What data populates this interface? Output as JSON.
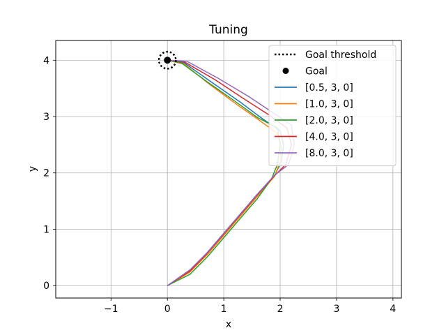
{
  "chart_data": {
    "type": "line",
    "title": "Tuning",
    "xlabel": "x",
    "ylabel": "y",
    "xlim": [
      -1.98,
      4.15
    ],
    "ylim": [
      -0.22,
      4.35
    ],
    "xticks": [
      -1,
      0,
      1,
      2,
      3,
      4
    ],
    "yticks": [
      0,
      1,
      2,
      3,
      4
    ],
    "grid": true,
    "legend_position": "top-right",
    "goal": {
      "x": 0,
      "y": 4,
      "threshold_radius": 0.15,
      "threshold_label": "Goal threshold",
      "label": "Goal"
    },
    "series": [
      {
        "name": "[0.5, 3, 0]",
        "color": "#1f77b4",
        "points": [
          [
            0,
            0
          ],
          [
            0.4,
            0.25
          ],
          [
            0.7,
            0.55
          ],
          [
            1.0,
            0.9
          ],
          [
            1.3,
            1.25
          ],
          [
            1.6,
            1.6
          ],
          [
            1.9,
            1.95
          ],
          [
            2.02,
            2.2
          ],
          [
            2.06,
            2.5
          ],
          [
            2.0,
            2.75
          ],
          [
            1.7,
            2.95
          ],
          [
            1.3,
            3.25
          ],
          [
            0.8,
            3.6
          ],
          [
            0.3,
            3.95
          ],
          [
            0,
            4
          ]
        ]
      },
      {
        "name": "[1.0, 3, 0]",
        "color": "#ff7f0e",
        "points": [
          [
            0,
            0
          ],
          [
            0.4,
            0.24
          ],
          [
            0.7,
            0.54
          ],
          [
            1.0,
            0.89
          ],
          [
            1.3,
            1.24
          ],
          [
            1.6,
            1.59
          ],
          [
            1.9,
            1.94
          ],
          [
            2.0,
            2.2
          ],
          [
            2.02,
            2.45
          ],
          [
            1.95,
            2.7
          ],
          [
            1.65,
            2.92
          ],
          [
            1.25,
            3.2
          ],
          [
            0.75,
            3.57
          ],
          [
            0.3,
            3.93
          ],
          [
            0,
            4
          ]
        ]
      },
      {
        "name": "[2.0, 3, 0]",
        "color": "#2ca02c",
        "points": [
          [
            0,
            0
          ],
          [
            0.4,
            0.2
          ],
          [
            0.7,
            0.5
          ],
          [
            1.0,
            0.85
          ],
          [
            1.3,
            1.2
          ],
          [
            1.6,
            1.55
          ],
          [
            1.85,
            1.9
          ],
          [
            1.95,
            2.15
          ],
          [
            2.0,
            2.5
          ],
          [
            1.95,
            2.8
          ],
          [
            1.6,
            2.98
          ],
          [
            1.2,
            3.27
          ],
          [
            0.7,
            3.62
          ],
          [
            0.25,
            3.95
          ],
          [
            0,
            4
          ]
        ]
      },
      {
        "name": "[4.0, 3, 0]",
        "color": "#d62728",
        "points": [
          [
            0,
            0
          ],
          [
            0.4,
            0.26
          ],
          [
            0.7,
            0.57
          ],
          [
            1.0,
            0.92
          ],
          [
            1.3,
            1.27
          ],
          [
            1.6,
            1.62
          ],
          [
            1.9,
            1.95
          ],
          [
            2.1,
            2.15
          ],
          [
            2.2,
            2.5
          ],
          [
            2.12,
            2.8
          ],
          [
            1.8,
            3.03
          ],
          [
            1.35,
            3.32
          ],
          [
            0.85,
            3.65
          ],
          [
            0.3,
            3.97
          ],
          [
            0,
            4
          ]
        ]
      },
      {
        "name": "[8.0, 3, 0]",
        "color": "#9467bd",
        "points": [
          [
            0,
            0
          ],
          [
            0.4,
            0.28
          ],
          [
            0.7,
            0.58
          ],
          [
            1.0,
            0.93
          ],
          [
            1.3,
            1.28
          ],
          [
            1.6,
            1.63
          ],
          [
            1.9,
            1.96
          ],
          [
            2.15,
            2.15
          ],
          [
            2.25,
            2.5
          ],
          [
            2.2,
            2.85
          ],
          [
            1.9,
            3.05
          ],
          [
            1.45,
            3.35
          ],
          [
            0.9,
            3.68
          ],
          [
            0.35,
            3.98
          ],
          [
            0,
            4
          ]
        ]
      }
    ]
  }
}
